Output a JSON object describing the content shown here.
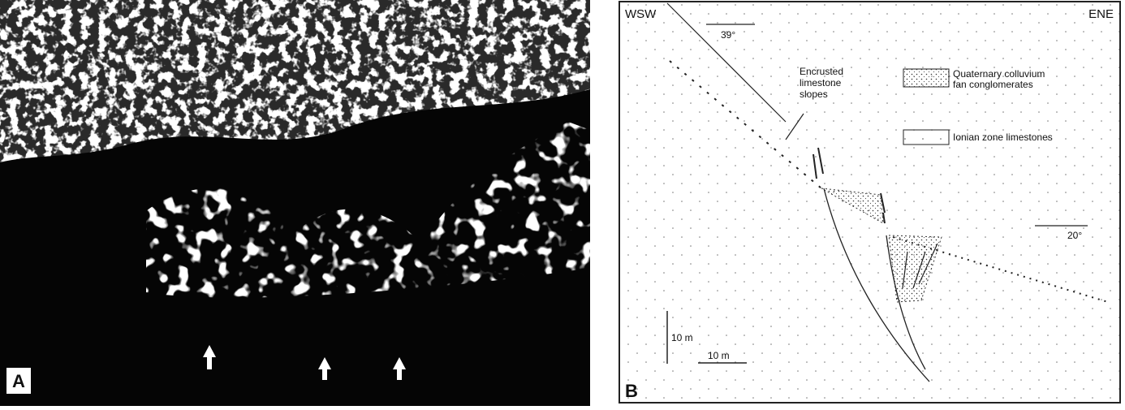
{
  "figure": {
    "panel_a": {
      "label": "A"
    },
    "panel_b": {
      "label": "B",
      "orientation_left": "WSW",
      "orientation_right": "ENE",
      "dip_upper": "39°",
      "dip_lower": "20°",
      "annotation": [
        "Encrusted",
        "limestone",
        "slopes"
      ],
      "legend": [
        {
          "lines": [
            "Quaternary colluvium",
            "fan conglomerates"
          ]
        },
        {
          "lines": [
            "Ionian zone limestones"
          ]
        }
      ],
      "scale_vertical": "10 m",
      "scale_horizontal": "10 m"
    }
  }
}
